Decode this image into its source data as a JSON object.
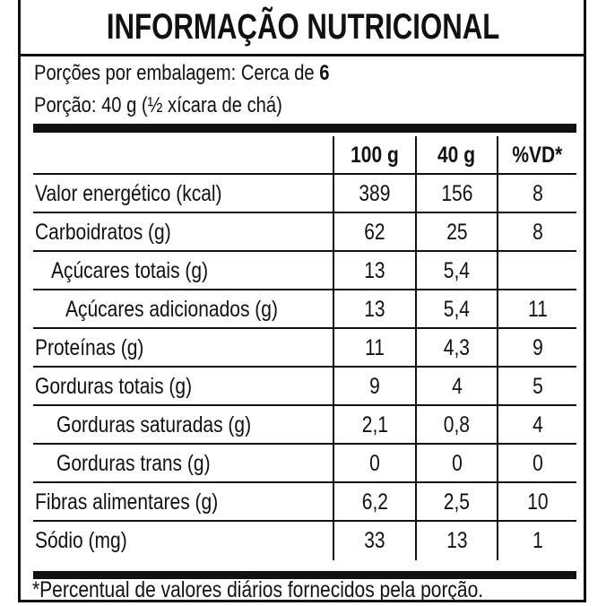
{
  "title": "INFORMAÇÃO NUTRICIONAL",
  "servings_label": "Porções por embalagem: Cerca de ",
  "servings_value": "6",
  "portion": "Porção: 40 g (½ xícara de chá)",
  "columns": [
    "100 g",
    "40 g",
    "%VD*"
  ],
  "rows": [
    {
      "label": "Valor energético (kcal)",
      "v100": "389",
      "v40": "156",
      "vd": "8"
    },
    {
      "label": "Carboidratos (g)",
      "v100": "62",
      "v40": "25",
      "vd": "8"
    },
    {
      "label": "Açúcares totais (g)",
      "v100": "13",
      "v40": "5,4",
      "vd": ""
    },
    {
      "label": "Açúcares adicionados (g)",
      "v100": "13",
      "v40": "5,4",
      "vd": "11"
    },
    {
      "label": "Proteínas (g)",
      "v100": "11",
      "v40": "4,3",
      "vd": "9"
    },
    {
      "label": "Gorduras totais (g)",
      "v100": "9",
      "v40": "4",
      "vd": "5"
    },
    {
      "label": "Gorduras saturadas (g)",
      "v100": "2,1",
      "v40": "0,8",
      "vd": "4"
    },
    {
      "label": "Gorduras trans (g)",
      "v100": "0",
      "v40": "0",
      "vd": "0"
    },
    {
      "label": "Fibras alimentares (g)",
      "v100": "6,2",
      "v40": "2,5",
      "vd": "10"
    },
    {
      "label": "Sódio (mg)",
      "v100": "33",
      "v40": "13",
      "vd": "1"
    }
  ],
  "footnote": "*Percentual de valores diários fornecidos pela porção."
}
